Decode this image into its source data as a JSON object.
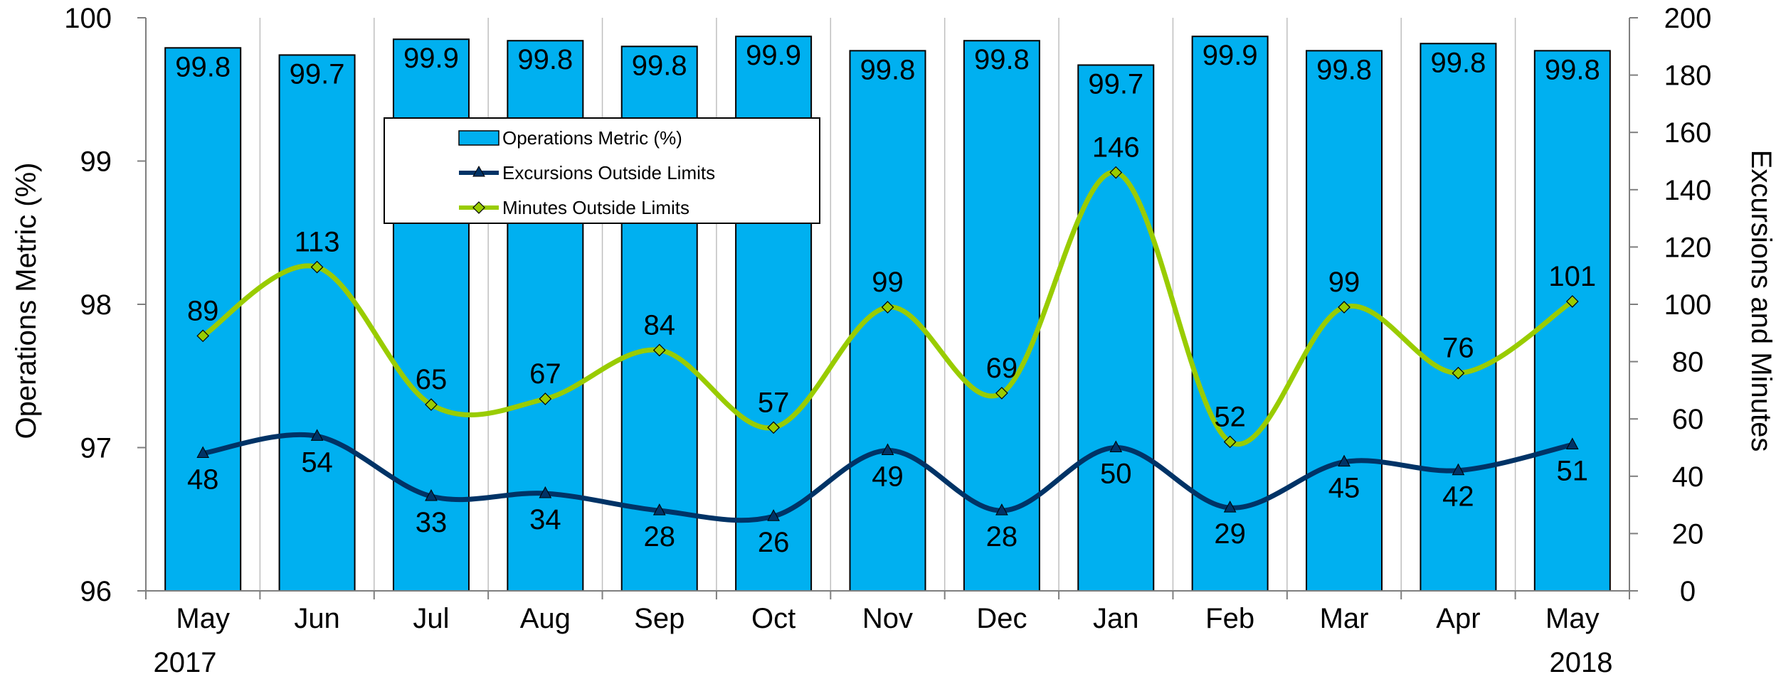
{
  "chart_data": {
    "type": "bar",
    "categories": [
      "May",
      "Jun",
      "Jul",
      "Aug",
      "Sep",
      "Oct",
      "Nov",
      "Dec",
      "Jan",
      "Feb",
      "Mar",
      "Apr",
      "May"
    ],
    "year_labels": {
      "start": "2017",
      "end": "2018"
    },
    "series": [
      {
        "name": "Operations Metric (%)",
        "type": "bar",
        "axis": "left",
        "color": "#00B0F0",
        "values": [
          99.79,
          99.74,
          99.85,
          99.84,
          99.8,
          99.87,
          99.77,
          99.84,
          99.67,
          99.87,
          99.77,
          99.82,
          99.77
        ],
        "labels": [
          "99.8",
          "99.7",
          "99.9",
          "99.8",
          "99.8",
          "99.9",
          "99.8",
          "99.8",
          "99.7",
          "99.9",
          "99.8",
          "99.8",
          "99.8"
        ]
      },
      {
        "name": "Excursions Outside Limits",
        "type": "line",
        "axis": "right",
        "color": "#003366",
        "marker": "triangle",
        "values": [
          48,
          54,
          33,
          34,
          28,
          26,
          49,
          28,
          50,
          29,
          45,
          42,
          51
        ]
      },
      {
        "name": "Minutes Outside Limits",
        "type": "line",
        "axis": "right",
        "color": "#99CC00",
        "marker": "diamond",
        "values": [
          89,
          113,
          65,
          67,
          84,
          57,
          99,
          69,
          146,
          52,
          99,
          76,
          101
        ]
      }
    ],
    "y_left": {
      "label": "Operations Metric (%)",
      "min": 96,
      "max": 100,
      "ticks": [
        96,
        97,
        98,
        99,
        100
      ]
    },
    "y_right": {
      "label": "Excursions and Minutes",
      "min": 0,
      "max": 200,
      "ticks": [
        0,
        20,
        40,
        60,
        80,
        100,
        120,
        140,
        160,
        180,
        200
      ]
    },
    "grid": {
      "vertical": true,
      "horizontal": false
    },
    "legend": {
      "position": "top-center"
    }
  }
}
